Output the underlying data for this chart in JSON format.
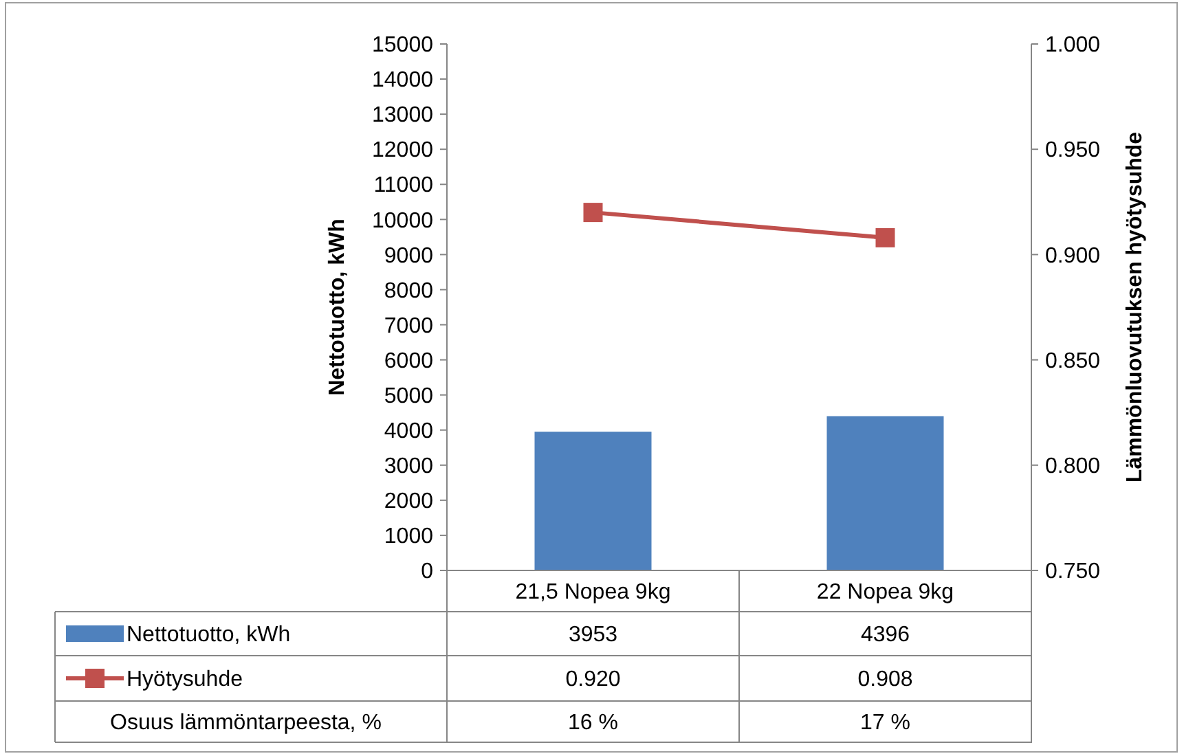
{
  "chart_data": {
    "type": "bar",
    "ylabel": "Nettotuotto, kWh",
    "y2label": "Lämmönluovutuksen hyötysuhde",
    "categories": [
      "21,5 Nopea 9kg",
      "22 Nopea 9kg"
    ],
    "series": [
      {
        "name": "Nettotuotto, kWh",
        "color": "#4f81bd",
        "values": [
          3953,
          4396
        ],
        "value_labels": [
          "3953",
          "4396"
        ]
      },
      {
        "name": "Hyötysuhde",
        "type": "line",
        "axis": "y2",
        "color": "#c0504d",
        "marker": "square",
        "values": [
          0.92,
          0.908
        ],
        "value_labels": [
          "0.920",
          "0.908"
        ]
      }
    ],
    "ylim": [
      0,
      15000
    ],
    "yticks": [
      0,
      1000,
      2000,
      3000,
      4000,
      5000,
      6000,
      7000,
      8000,
      9000,
      10000,
      11000,
      12000,
      13000,
      14000,
      15000
    ],
    "y2lim": [
      0.75,
      1.0
    ],
    "y2ticks": [
      {
        "value": 0.75,
        "label": "0.750"
      },
      {
        "value": 0.8,
        "label": "0.800"
      },
      {
        "value": 0.85,
        "label": "0.850"
      },
      {
        "value": 0.9,
        "label": "0.900"
      },
      {
        "value": 0.95,
        "label": "0.950"
      },
      {
        "value": 1.0,
        "label": "1.000"
      }
    ],
    "legend": "bottom",
    "annotations": [
      "Osuus lämmöntarpeesta, %",
      "16 %",
      "17 %"
    ]
  }
}
